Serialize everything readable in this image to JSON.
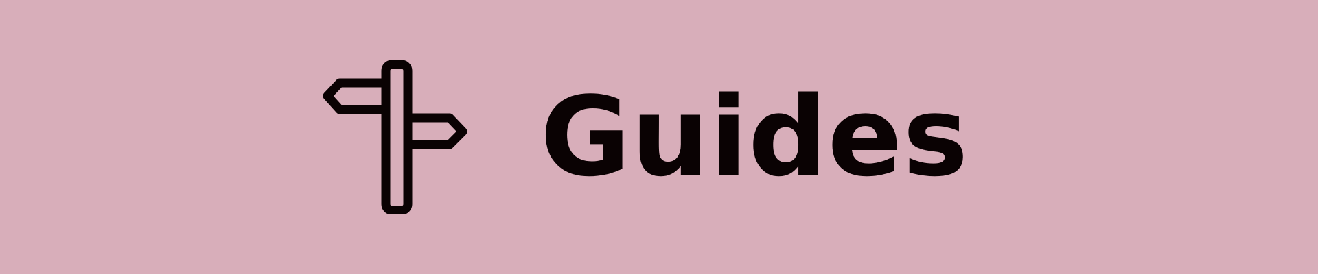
{
  "banner": {
    "title": "Guides",
    "icon": "signpost-icon",
    "background_color": "#d8aeba",
    "text_color": "#0a0203"
  }
}
